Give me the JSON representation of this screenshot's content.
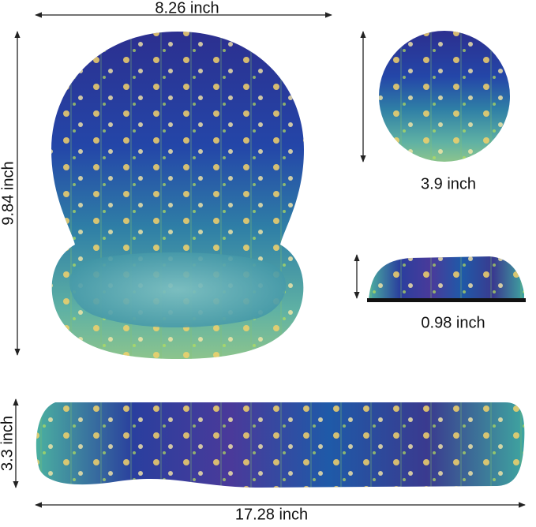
{
  "dimensions": {
    "mouse_pad_width": "8.26 inch",
    "mouse_pad_height": "9.84 inch",
    "coaster_diameter": "3.9 inch",
    "wrist_rest_thickness": "0.98 inch",
    "keyboard_rest_depth": "3.3 inch",
    "keyboard_rest_length": "17.28 inch"
  }
}
